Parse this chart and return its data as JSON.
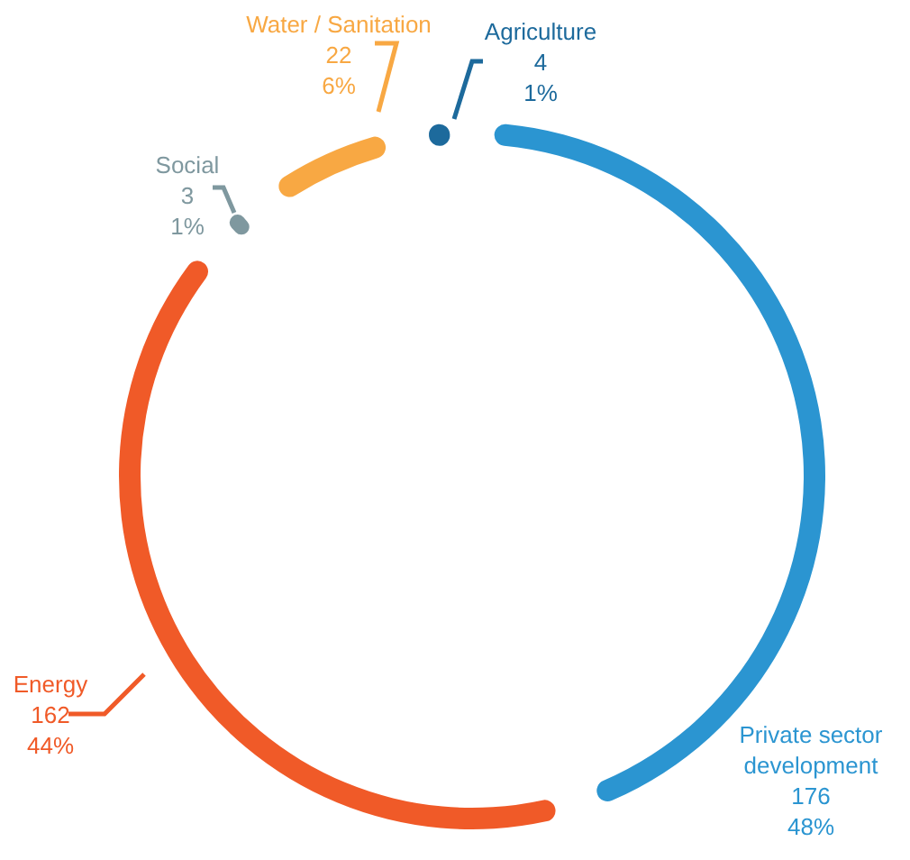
{
  "chart_data": {
    "type": "donut",
    "categories": [
      "Private sector development",
      "Energy",
      "Social",
      "Water / Sanitation",
      "Agriculture"
    ],
    "values": [
      176,
      162,
      3,
      22,
      4
    ],
    "value_labels": [
      "176\n48%",
      "162\n44%",
      "3\n1%",
      "22\n6%",
      "4\n1%"
    ],
    "colors": [
      "#2b95d1",
      "#f05a28",
      "#7f989f",
      "#f8a843",
      "#1d6a9c"
    ]
  }
}
